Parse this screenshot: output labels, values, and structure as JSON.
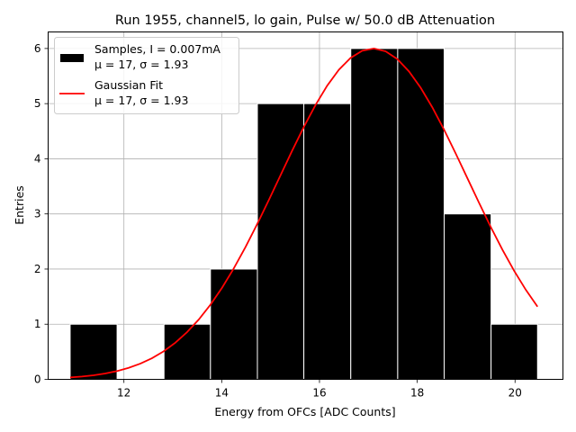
{
  "chart_data": {
    "type": "bar",
    "title": "Run 1955, channel5, lo gain, Pulse w/ 50.0 dB Attenuation",
    "xlabel": "Energy from OFCs [ADC Counts]",
    "ylabel": "Entries",
    "xlim": [
      10.45,
      20.98
    ],
    "ylim": [
      0,
      6.3
    ],
    "xticks": [
      12,
      14,
      16,
      18,
      20
    ],
    "yticks": [
      0,
      1,
      2,
      3,
      4,
      5,
      6
    ],
    "grid": true,
    "legend_position": "top-left",
    "histogram": {
      "name": "Samples, I = 0.007mA",
      "stats_label": "μ = 17, σ = 1.93",
      "color": "#000000",
      "edge_color": "#ffffff",
      "bins": [
        {
          "x0": 10.9,
          "x1": 11.86,
          "count": 1
        },
        {
          "x0": 11.86,
          "x1": 12.82,
          "count": 0
        },
        {
          "x0": 12.82,
          "x1": 13.77,
          "count": 1
        },
        {
          "x0": 13.77,
          "x1": 14.73,
          "count": 2
        },
        {
          "x0": 14.73,
          "x1": 15.68,
          "count": 5
        },
        {
          "x0": 15.68,
          "x1": 16.64,
          "count": 5
        },
        {
          "x0": 16.64,
          "x1": 17.6,
          "count": 6
        },
        {
          "x0": 17.6,
          "x1": 18.55,
          "count": 6
        },
        {
          "x0": 18.55,
          "x1": 19.51,
          "count": 3
        },
        {
          "x0": 19.51,
          "x1": 20.46,
          "count": 1
        }
      ]
    },
    "fit": {
      "name": "Gaussian Fit",
      "stats_label": "μ = 17, σ = 1.93",
      "color": "#ff0000",
      "mu": 17.1,
      "sigma": 1.93,
      "amplitude": 6.0,
      "x_range": [
        10.9,
        20.46
      ]
    }
  }
}
